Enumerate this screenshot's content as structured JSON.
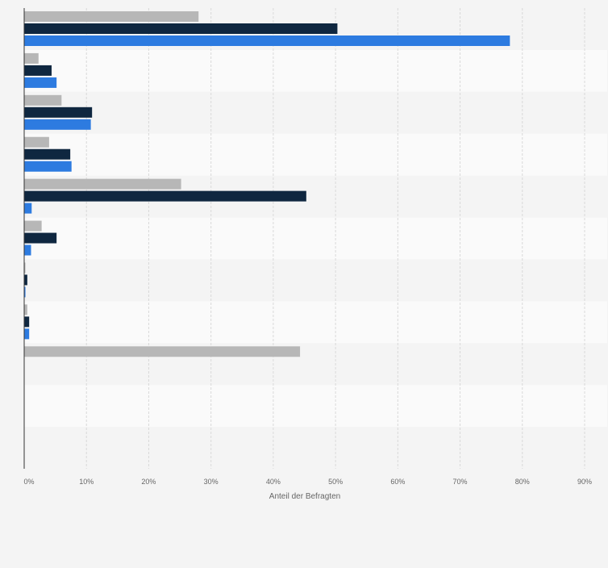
{
  "chart_data": {
    "type": "bar",
    "orientation": "horizontal",
    "xlabel": "Anteil der Befragten",
    "xlim": [
      0,
      90
    ],
    "xticks": [
      0,
      10,
      20,
      30,
      40,
      50,
      60,
      70,
      80,
      90
    ],
    "tick_suffix": "%",
    "grid": true,
    "categories": [
      "",
      "",
      "",
      "",
      "",
      "",
      "",
      "",
      "",
      "",
      ""
    ],
    "series": [
      {
        "color": "#b7b7b7",
        "values": [
          28.0,
          2.3,
          6.0,
          4.0,
          25.2,
          2.8,
          0.2,
          0.5,
          44.3,
          0,
          0
        ]
      },
      {
        "color": "#0f2740",
        "values": [
          50.3,
          4.4,
          10.9,
          7.4,
          45.3,
          5.2,
          0.5,
          0.8,
          0,
          0,
          0
        ]
      },
      {
        "color": "#2d7be0",
        "values": [
          78.0,
          5.2,
          10.7,
          7.6,
          1.2,
          1.1,
          0.2,
          0.8,
          0,
          0,
          0
        ]
      }
    ]
  }
}
